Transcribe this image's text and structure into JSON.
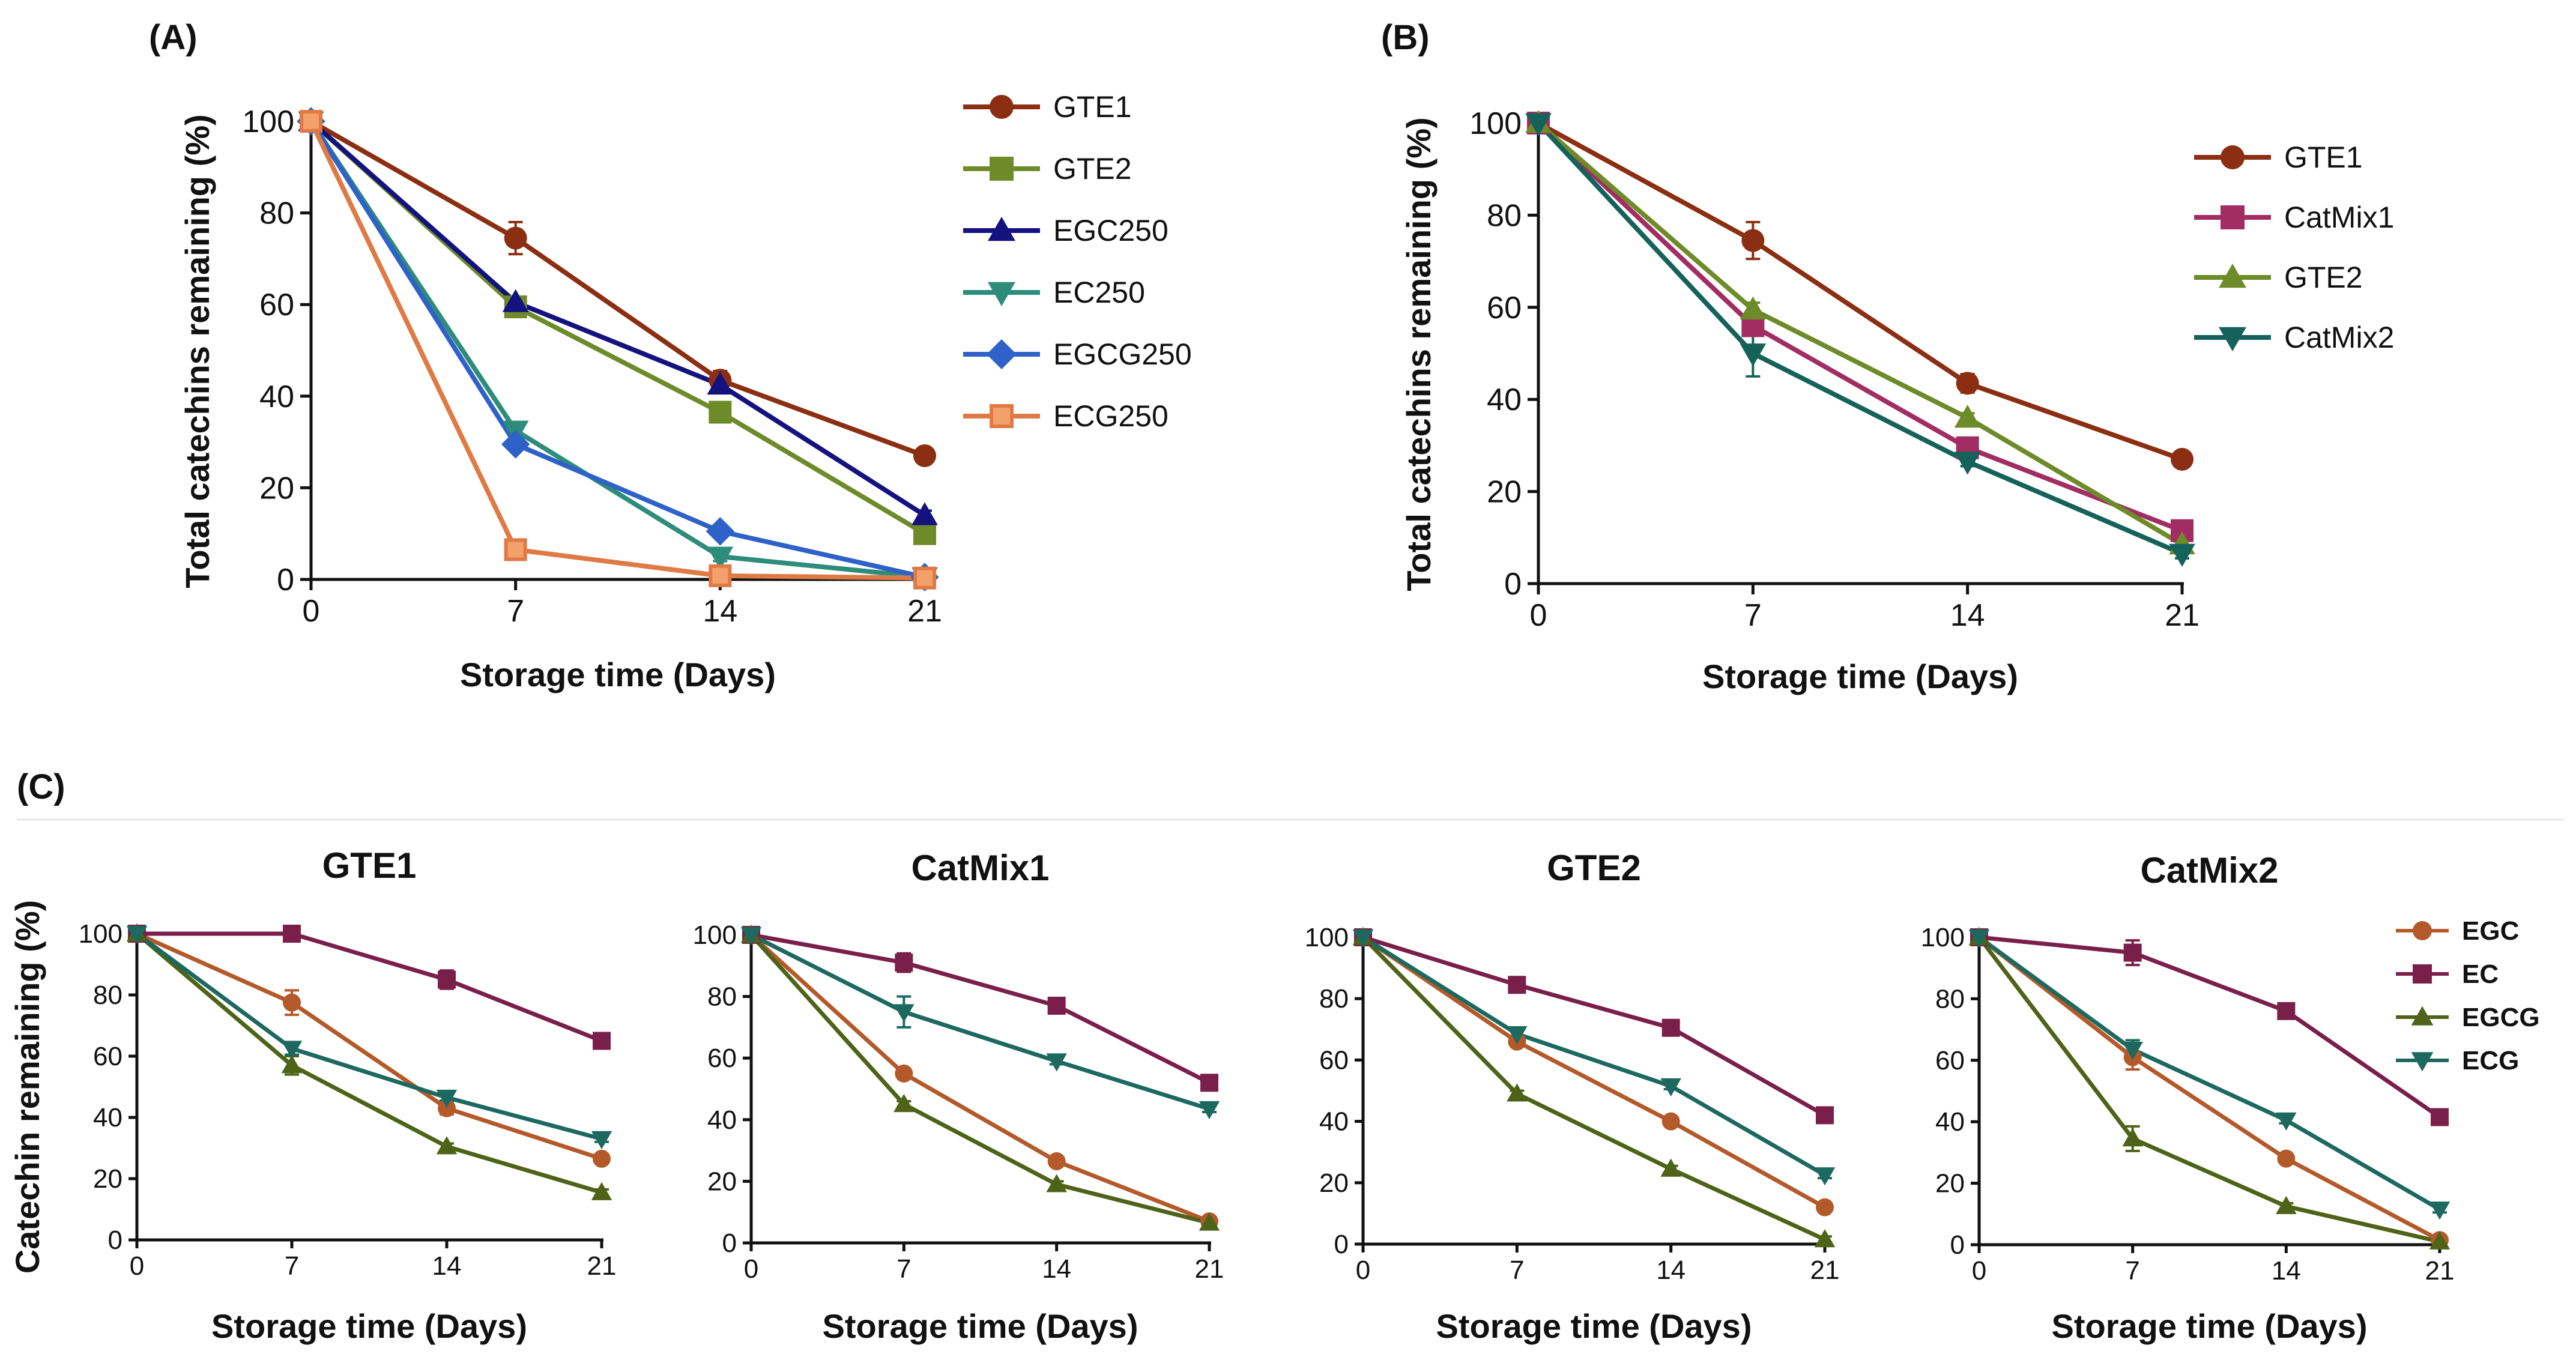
{
  "figure_labels": {
    "A": "(A)",
    "B": "(B)",
    "C": "(C)"
  },
  "colors": {
    "GTE1": "#8B2E12",
    "GTE2": "#6E8B2A",
    "EGC250": "#14127E",
    "EC250": "#2E8C7A",
    "EGCG250": "#2F62C8",
    "ECG250": "#E07A45",
    "CatMix1": "#A12D63",
    "CatMix2": "#15625B",
    "EGC": "#B45A2A",
    "EC": "#7A1F4A",
    "EGCG": "#4E6318",
    "ECG": "#1D6960",
    "axis": "#111111"
  },
  "chart_data": [
    {
      "id": "A",
      "type": "line",
      "title": "",
      "xlabel": "Storage time (Days)",
      "ylabel": "Total catechins remaining (%)",
      "x": [
        0,
        7,
        14,
        21
      ],
      "xticks": [
        "0",
        "7",
        "14",
        "21"
      ],
      "yticks": [
        "0",
        "20",
        "40",
        "60",
        "80",
        "100"
      ],
      "xlim": [
        0,
        21
      ],
      "ylim": [
        0,
        100
      ],
      "legend_position": "right",
      "series": [
        {
          "name": "GTE1",
          "marker": "circle",
          "values": [
            100,
            74.5,
            43.5,
            27
          ],
          "errors": [
            0,
            3.5,
            2,
            0
          ]
        },
        {
          "name": "GTE2",
          "marker": "square",
          "values": [
            100,
            59.5,
            36.5,
            10
          ],
          "errors": [
            0,
            1.5,
            1,
            1
          ]
        },
        {
          "name": "EGC250",
          "marker": "triangle-up",
          "values": [
            100,
            60.5,
            42.5,
            14
          ],
          "errors": [
            0,
            1,
            1,
            1
          ]
        },
        {
          "name": "EC250",
          "marker": "triangle-down",
          "values": [
            100,
            32.5,
            5,
            0.5
          ],
          "errors": [
            0,
            1,
            1,
            0
          ]
        },
        {
          "name": "EGCG250",
          "marker": "diamond",
          "values": [
            100,
            29.5,
            10.5,
            0.5
          ],
          "errors": [
            0,
            1,
            1,
            0
          ]
        },
        {
          "name": "ECG250",
          "marker": "square-open",
          "values": [
            100,
            6.5,
            0.8,
            0.3
          ],
          "errors": [
            0,
            1,
            0,
            0
          ]
        }
      ]
    },
    {
      "id": "B",
      "type": "line",
      "title": "",
      "xlabel": "Storage time (Days)",
      "ylabel": "Total catechins remaining (%)",
      "x": [
        0,
        7,
        14,
        21
      ],
      "xticks": [
        "0",
        "7",
        "14",
        "21"
      ],
      "yticks": [
        "0",
        "20",
        "40",
        "60",
        "80",
        "100"
      ],
      "xlim": [
        0,
        21
      ],
      "ylim": [
        0,
        100
      ],
      "legend_position": "right",
      "series": [
        {
          "name": "GTE1",
          "marker": "circle",
          "values": [
            100,
            74.5,
            43.5,
            27
          ],
          "errors": [
            0,
            4,
            2,
            0
          ]
        },
        {
          "name": "CatMix1",
          "marker": "square",
          "values": [
            100,
            56,
            29.5,
            11.5
          ],
          "errors": [
            0,
            2,
            1,
            1
          ]
        },
        {
          "name": "GTE2",
          "marker": "triangle-up",
          "values": [
            100,
            59.5,
            36,
            8.5
          ],
          "errors": [
            0,
            1.5,
            1,
            1
          ]
        },
        {
          "name": "CatMix2",
          "marker": "triangle-down",
          "values": [
            100,
            50,
            26.5,
            6.5
          ],
          "errors": [
            0,
            5,
            1,
            1
          ]
        }
      ]
    },
    {
      "id": "C1",
      "type": "line",
      "title": "GTE1",
      "xlabel": "Storage time (Days)",
      "ylabel": "Catechin remaining (%)",
      "x": [
        0,
        7,
        14,
        21
      ],
      "xticks": [
        "0",
        "7",
        "14",
        "21"
      ],
      "yticks": [
        "0",
        "20",
        "40",
        "60",
        "80",
        "100"
      ],
      "xlim": [
        0,
        21
      ],
      "ylim": [
        0,
        100
      ],
      "series": [
        {
          "name": "EGC",
          "marker": "circle",
          "values": [
            100,
            77.5,
            43,
            26.5
          ],
          "errors": [
            0,
            4,
            2,
            1
          ]
        },
        {
          "name": "EC",
          "marker": "square",
          "values": [
            100,
            100,
            85,
            65
          ],
          "errors": [
            0,
            1,
            3,
            2
          ]
        },
        {
          "name": "EGCG",
          "marker": "triangle-up",
          "values": [
            100,
            57,
            30.5,
            15.5
          ],
          "errors": [
            0,
            3,
            1,
            1
          ]
        },
        {
          "name": "ECG",
          "marker": "triangle-down",
          "values": [
            100,
            62.5,
            46.5,
            33
          ],
          "errors": [
            0,
            2,
            1,
            1
          ]
        }
      ]
    },
    {
      "id": "C2",
      "type": "line",
      "title": "CatMix1",
      "xlabel": "Storage time (Days)",
      "ylabel": "",
      "x": [
        0,
        7,
        14,
        21
      ],
      "xticks": [
        "0",
        "7",
        "14",
        "21"
      ],
      "yticks": [
        "0",
        "20",
        "40",
        "60",
        "80",
        "100"
      ],
      "xlim": [
        0,
        21
      ],
      "ylim": [
        0,
        100
      ],
      "series": [
        {
          "name": "EGC",
          "marker": "circle",
          "values": [
            100,
            55,
            26.5,
            7
          ],
          "errors": [
            0,
            1,
            1,
            1
          ]
        },
        {
          "name": "EC",
          "marker": "square",
          "values": [
            100,
            91,
            77,
            52
          ],
          "errors": [
            0,
            3,
            1,
            1
          ]
        },
        {
          "name": "EGCG",
          "marker": "triangle-up",
          "values": [
            100,
            45,
            19,
            6.5
          ],
          "errors": [
            0,
            1,
            1,
            1
          ]
        },
        {
          "name": "ECG",
          "marker": "triangle-down",
          "values": [
            100,
            75,
            59,
            43.5
          ],
          "errors": [
            0,
            5,
            1,
            1
          ]
        }
      ]
    },
    {
      "id": "C3",
      "type": "line",
      "title": "GTE2",
      "xlabel": "Storage time (Days)",
      "ylabel": "",
      "x": [
        0,
        7,
        14,
        21
      ],
      "xticks": [
        "0",
        "7",
        "14",
        "21"
      ],
      "yticks": [
        "0",
        "20",
        "40",
        "60",
        "80",
        "100"
      ],
      "xlim": [
        0,
        21
      ],
      "ylim": [
        0,
        100
      ],
      "series": [
        {
          "name": "EGC",
          "marker": "circle",
          "values": [
            100,
            66,
            40,
            12
          ],
          "errors": [
            0,
            1,
            1,
            1
          ]
        },
        {
          "name": "EC",
          "marker": "square",
          "values": [
            100,
            84.5,
            70.5,
            42
          ],
          "errors": [
            0,
            1,
            1,
            1
          ]
        },
        {
          "name": "EGCG",
          "marker": "triangle-up",
          "values": [
            100,
            49,
            24.5,
            1.5
          ],
          "errors": [
            0,
            1,
            1,
            1
          ]
        },
        {
          "name": "ECG",
          "marker": "triangle-down",
          "values": [
            100,
            68.5,
            51.5,
            22.5
          ],
          "errors": [
            0,
            1,
            1,
            1
          ]
        }
      ]
    },
    {
      "id": "C4",
      "type": "line",
      "title": "CatMix2",
      "xlabel": "Storage time (Days)",
      "ylabel": "",
      "x": [
        0,
        7,
        14,
        21
      ],
      "xticks": [
        "0",
        "7",
        "14",
        "21"
      ],
      "yticks": [
        "0",
        "20",
        "40",
        "60",
        "80",
        "100"
      ],
      "xlim": [
        0,
        21
      ],
      "ylim": [
        0,
        100
      ],
      "legend_position": "top-right",
      "series": [
        {
          "name": "EGC",
          "marker": "circle",
          "values": [
            100,
            61,
            28,
            1.5
          ],
          "errors": [
            0,
            4,
            1,
            0
          ]
        },
        {
          "name": "EC",
          "marker": "square",
          "values": [
            100,
            95,
            76,
            41.5
          ],
          "errors": [
            0,
            4,
            1,
            1
          ]
        },
        {
          "name": "EGCG",
          "marker": "triangle-up",
          "values": [
            100,
            34.5,
            12.5,
            1
          ],
          "errors": [
            0,
            4,
            1,
            0
          ]
        },
        {
          "name": "ECG",
          "marker": "triangle-down",
          "values": [
            100,
            63.5,
            40.5,
            11.5
          ],
          "errors": [
            0,
            3,
            1,
            1
          ]
        }
      ]
    }
  ]
}
